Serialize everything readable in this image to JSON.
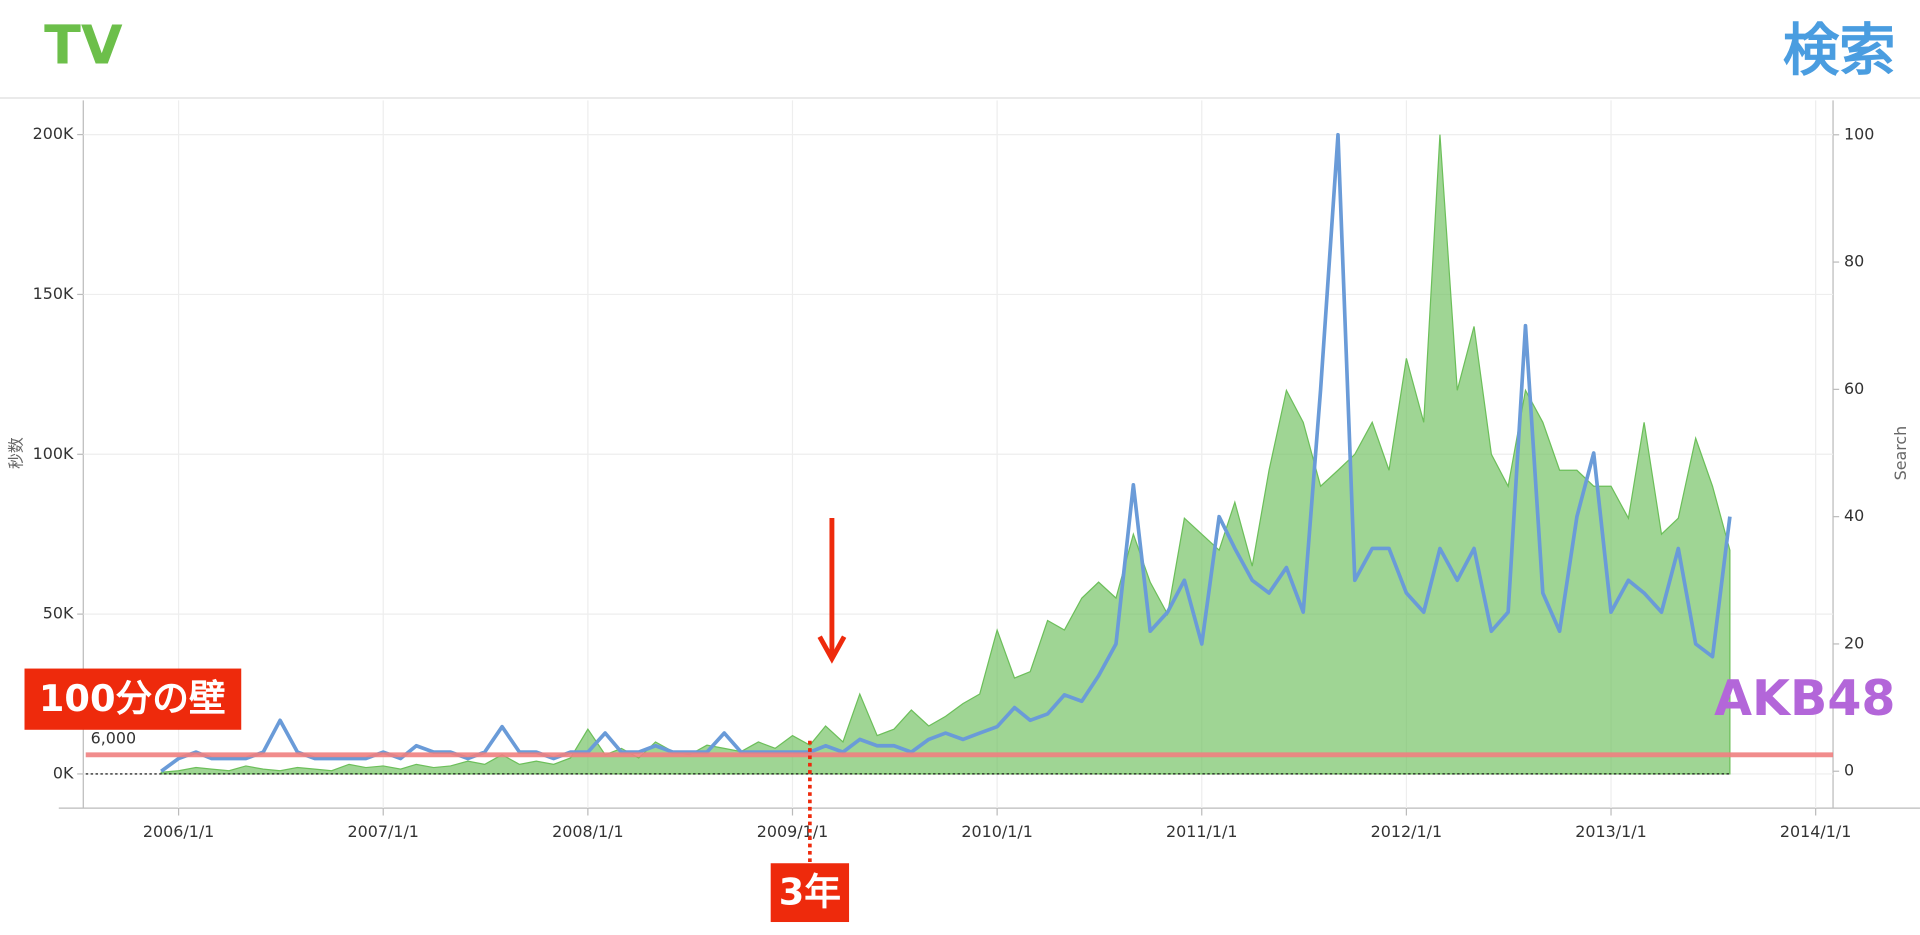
{
  "chart_data": {
    "type": "area_line",
    "axis_label_left": "秒数",
    "axis_label_right": "Search",
    "x": [
      "2005/12/1",
      "2006/1/1",
      "2006/2/1",
      "2006/3/1",
      "2006/4/1",
      "2006/5/1",
      "2006/6/1",
      "2006/7/1",
      "2006/8/1",
      "2006/9/1",
      "2006/10/1",
      "2006/11/1",
      "2006/12/1",
      "2007/1/1",
      "2007/2/1",
      "2007/3/1",
      "2007/4/1",
      "2007/5/1",
      "2007/6/1",
      "2007/7/1",
      "2007/8/1",
      "2007/9/1",
      "2007/10/1",
      "2007/11/1",
      "2007/12/1",
      "2008/1/1",
      "2008/2/1",
      "2008/3/1",
      "2008/4/1",
      "2008/5/1",
      "2008/6/1",
      "2008/7/1",
      "2008/8/1",
      "2008/9/1",
      "2008/10/1",
      "2008/11/1",
      "2008/12/1",
      "2009/1/1",
      "2009/2/1",
      "2009/3/1",
      "2009/4/1",
      "2009/5/1",
      "2009/6/1",
      "2009/7/1",
      "2009/8/1",
      "2009/9/1",
      "2009/10/1",
      "2009/11/1",
      "2009/12/1",
      "2010/1/1",
      "2010/2/1",
      "2010/3/1",
      "2010/4/1",
      "2010/5/1",
      "2010/6/1",
      "2010/7/1",
      "2010/8/1",
      "2010/9/1",
      "2010/10/1",
      "2010/11/1",
      "2010/12/1",
      "2011/1/1",
      "2011/2/1",
      "2011/3/1",
      "2011/4/1",
      "2011/5/1",
      "2011/6/1",
      "2011/7/1",
      "2011/8/1",
      "2011/9/1",
      "2011/10/1",
      "2011/11/1",
      "2011/12/1",
      "2012/1/1",
      "2012/2/1",
      "2012/3/1",
      "2012/4/1",
      "2012/5/1",
      "2012/6/1",
      "2012/7/1",
      "2012/8/1",
      "2012/9/1",
      "2012/10/1",
      "2012/11/1",
      "2012/12/1",
      "2013/1/1",
      "2013/2/1",
      "2013/3/1",
      "2013/4/1",
      "2013/5/1",
      "2013/6/1",
      "2013/7/1",
      "2013/8/1"
    ],
    "series": [
      {
        "name": "TV",
        "color": "#6cbf5a",
        "axis": "y",
        "kind": "area",
        "values": [
          500,
          1000,
          2000,
          1500,
          1000,
          2500,
          1500,
          1000,
          2000,
          1500,
          1000,
          3000,
          2000,
          2500,
          1500,
          3000,
          2000,
          2500,
          4000,
          3000,
          6000,
          3000,
          4000,
          3000,
          5000,
          14000,
          6000,
          8000,
          5000,
          10000,
          7000,
          6000,
          9000,
          8000,
          7000,
          10000,
          8000,
          12000,
          9000,
          15000,
          10000,
          25000,
          12000,
          14000,
          20000,
          15000,
          18000,
          22000,
          25000,
          45000,
          30000,
          32000,
          48000,
          45000,
          55000,
          60000,
          55000,
          75000,
          60000,
          50000,
          80000,
          75000,
          70000,
          85000,
          65000,
          95000,
          120000,
          110000,
          90000,
          95000,
          100000,
          110000,
          95000,
          130000,
          110000,
          200000,
          120000,
          140000,
          100000,
          90000,
          120000,
          110000,
          95000,
          95000,
          90000,
          90000,
          80000,
          110000,
          75000,
          80000,
          105000,
          90000,
          70000
        ]
      },
      {
        "name": "検索",
        "color": "#6a9bd8",
        "axis": "y2",
        "kind": "line",
        "values": [
          0,
          2,
          3,
          2,
          2,
          2,
          3,
          8,
          3,
          2,
          2,
          2,
          2,
          3,
          2,
          4,
          3,
          3,
          2,
          3,
          7,
          3,
          3,
          2,
          3,
          3,
          6,
          3,
          3,
          4,
          3,
          3,
          3,
          6,
          3,
          3,
          3,
          3,
          3,
          4,
          3,
          5,
          4,
          4,
          3,
          5,
          6,
          5,
          6,
          7,
          10,
          8,
          9,
          12,
          11,
          15,
          20,
          45,
          22,
          25,
          30,
          20,
          40,
          35,
          30,
          28,
          32,
          25,
          60,
          100,
          30,
          35,
          35,
          28,
          25,
          35,
          30,
          35,
          22,
          25,
          70,
          28,
          22,
          40,
          50,
          25,
          30,
          28,
          25,
          35,
          20,
          18,
          40
        ]
      }
    ],
    "xlim": [
      "2005/7/15",
      "2014/2/1"
    ],
    "xticks": [
      "2006/1/1",
      "2007/1/1",
      "2008/1/1",
      "2009/1/1",
      "2010/1/1",
      "2011/1/1",
      "2012/1/1",
      "2013/1/1",
      "2014/1/1"
    ],
    "ylim": [
      -10700,
      210700
    ],
    "yticks": [
      {
        "value": 0,
        "label": "0K"
      },
      {
        "value": 50000,
        "label": "50K"
      },
      {
        "value": 100000,
        "label": "100K"
      },
      {
        "value": 150000,
        "label": "150K"
      },
      {
        "value": 200000,
        "label": "200K"
      }
    ],
    "y2lim": [
      -5.8,
      105.4
    ],
    "y2ticks": [
      0,
      20,
      40,
      60,
      80,
      100
    ],
    "grid": true,
    "reference_line": {
      "value": 6000,
      "label": "6,000",
      "color": "#f08080"
    },
    "annotations": {
      "wall": "100分の壁",
      "years": "3年",
      "marker_date": "2009/2/1",
      "series_label": "AKB48"
    }
  }
}
